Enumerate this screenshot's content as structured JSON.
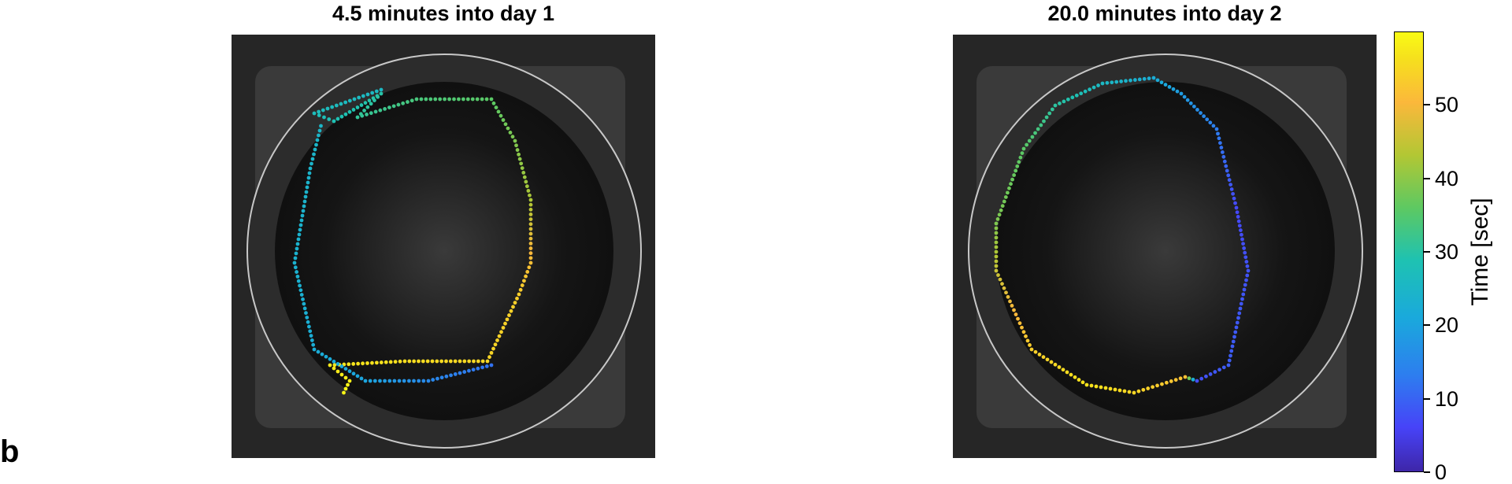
{
  "panels": [
    {
      "title": "4.5 minutes into day 1"
    },
    {
      "title": "20.0 minutes into day 2"
    }
  ],
  "colorbar": {
    "label": "Time [sec]",
    "ticks": [
      "0",
      "10",
      "20",
      "30",
      "40",
      "50"
    ],
    "colormap": "parula",
    "range": [
      0,
      60
    ]
  },
  "panel_letter": "b"
}
